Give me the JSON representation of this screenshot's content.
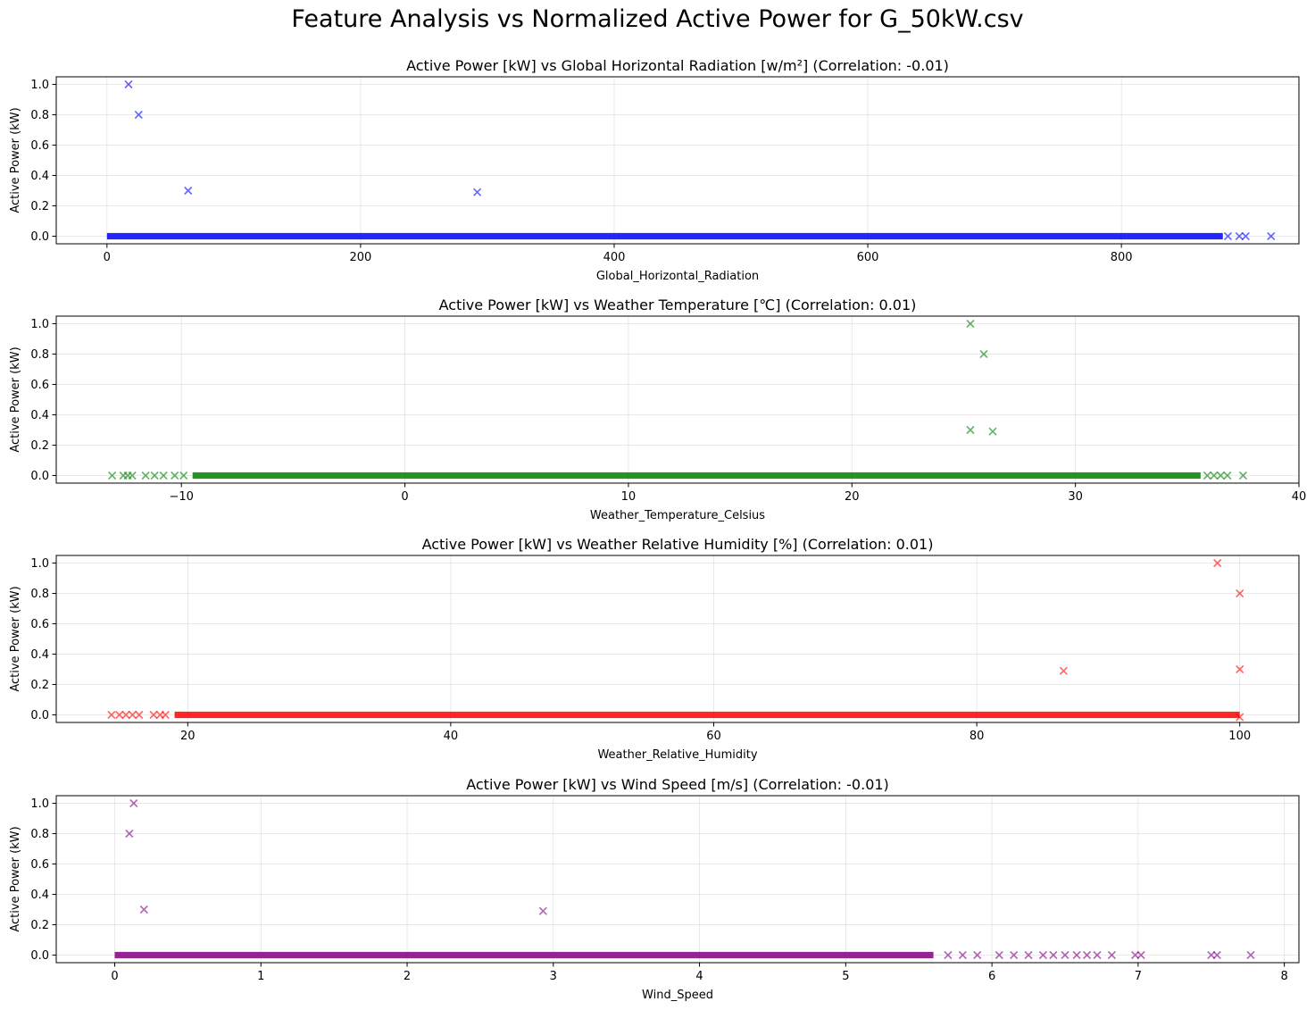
{
  "figure": {
    "title": "Feature Analysis vs Normalized Active Power for G_50kW.csv"
  },
  "chart_data": [
    {
      "type": "scatter",
      "title": "Active Power [kW] vs Global Horizontal Radiation [w/m²] (Correlation: -0.01)",
      "xlabel": "Global_Horizontal_Radiation",
      "ylabel": "Active Power (kW)",
      "xlim": [
        -40,
        940
      ],
      "ylim": [
        -0.05,
        1.05
      ],
      "xticks": [
        0,
        200,
        400,
        600,
        800
      ],
      "yticks": [
        0.0,
        0.2,
        0.4,
        0.6,
        0.8,
        1.0
      ],
      "ytick_labels": [
        "0.0",
        "0.2",
        "0.4",
        "0.6",
        "0.8",
        "1.0"
      ],
      "grid": true,
      "marker": "x",
      "color": "#0000ff",
      "baseline": {
        "y": 0.0,
        "x_range": [
          0,
          918
        ],
        "dense_until": 880
      },
      "points": [
        {
          "x": 17,
          "y": 1.0
        },
        {
          "x": 25,
          "y": 0.8
        },
        {
          "x": 64,
          "y": 0.3
        },
        {
          "x": 292,
          "y": 0.29
        },
        {
          "x": 884,
          "y": 0.0
        },
        {
          "x": 893,
          "y": 0.0
        },
        {
          "x": 898,
          "y": 0.0
        },
        {
          "x": 918,
          "y": 0.0
        }
      ]
    },
    {
      "type": "scatter",
      "title": "Active Power [kW] vs Weather Temperature [℃] (Correlation: 0.01)",
      "xlabel": "Weather_Temperature_Celsius",
      "ylabel": "Active Power (kW)",
      "xlim": [
        -15.6,
        40.0
      ],
      "ylim": [
        -0.05,
        1.05
      ],
      "xticks": [
        -10,
        0,
        10,
        20,
        30,
        40
      ],
      "yticks": [
        0.0,
        0.2,
        0.4,
        0.6,
        0.8,
        1.0
      ],
      "ytick_labels": [
        "0.0",
        "0.2",
        "0.4",
        "0.6",
        "0.8",
        "1.0"
      ],
      "grid": true,
      "marker": "x",
      "color": "#008000",
      "baseline": {
        "y": 0.0,
        "x_range": [
          -13.1,
          37.5
        ],
        "dense_until": 35.6,
        "dense_from": -9.5
      },
      "points": [
        {
          "x": 25.3,
          "y": 1.0
        },
        {
          "x": 25.9,
          "y": 0.8
        },
        {
          "x": 25.3,
          "y": 0.3
        },
        {
          "x": 26.3,
          "y": 0.29
        },
        {
          "x": -13.1,
          "y": 0.0
        },
        {
          "x": -12.6,
          "y": 0.0
        },
        {
          "x": -12.4,
          "y": 0.0
        },
        {
          "x": -12.2,
          "y": 0.0
        },
        {
          "x": -11.6,
          "y": 0.0
        },
        {
          "x": -11.2,
          "y": 0.0
        },
        {
          "x": -10.8,
          "y": 0.0
        },
        {
          "x": -10.3,
          "y": 0.0
        },
        {
          "x": -9.9,
          "y": 0.0
        },
        {
          "x": 35.9,
          "y": 0.0
        },
        {
          "x": 36.2,
          "y": 0.0
        },
        {
          "x": 36.5,
          "y": 0.0
        },
        {
          "x": 36.8,
          "y": 0.0
        },
        {
          "x": 37.5,
          "y": 0.0
        }
      ]
    },
    {
      "type": "scatter",
      "title": "Active Power [kW] vs Weather Relative Humidity [%] (Correlation: 0.01)",
      "xlabel": "Weather_Relative_Humidity",
      "ylabel": "Active Power (kW)",
      "xlim": [
        10.0,
        104.5
      ],
      "ylim": [
        -0.05,
        1.05
      ],
      "xticks": [
        20,
        40,
        60,
        80,
        100
      ],
      "yticks": [
        0.0,
        0.2,
        0.4,
        0.6,
        0.8,
        1.0
      ],
      "ytick_labels": [
        "0.0",
        "0.2",
        "0.4",
        "0.6",
        "0.8",
        "1.0"
      ],
      "grid": true,
      "marker": "x",
      "color": "#ff0000",
      "baseline": {
        "y": 0.0,
        "x_range": [
          14.2,
          100.0
        ],
        "dense_from": 19.0
      },
      "points": [
        {
          "x": 98.3,
          "y": 1.0
        },
        {
          "x": 100.0,
          "y": 0.8
        },
        {
          "x": 100.0,
          "y": 0.3
        },
        {
          "x": 86.6,
          "y": 0.29
        },
        {
          "x": 14.2,
          "y": 0.0
        },
        {
          "x": 14.8,
          "y": 0.0
        },
        {
          "x": 15.3,
          "y": 0.0
        },
        {
          "x": 15.8,
          "y": 0.0
        },
        {
          "x": 16.3,
          "y": 0.0
        },
        {
          "x": 17.4,
          "y": 0.0
        },
        {
          "x": 17.9,
          "y": 0.0
        },
        {
          "x": 18.3,
          "y": 0.0
        },
        {
          "x": 100.0,
          "y": -0.015
        }
      ]
    },
    {
      "type": "scatter",
      "title": "Active Power [kW] vs Wind Speed [m/s] (Correlation: -0.01)",
      "xlabel": "Wind_Speed",
      "ylabel": "Active Power (kW)",
      "xlim": [
        -0.4,
        8.1
      ],
      "ylim": [
        -0.05,
        1.05
      ],
      "xticks": [
        0,
        1,
        2,
        3,
        4,
        5,
        6,
        7,
        8
      ],
      "yticks": [
        0.0,
        0.2,
        0.4,
        0.6,
        0.8,
        1.0
      ],
      "ytick_labels": [
        "0.0",
        "0.2",
        "0.4",
        "0.6",
        "0.8",
        "1.0"
      ],
      "grid": true,
      "marker": "x",
      "color": "#800080",
      "baseline": {
        "y": 0.0,
        "x_range": [
          0,
          7.77
        ],
        "dense_until": 5.6
      },
      "points": [
        {
          "x": 0.13,
          "y": 1.0
        },
        {
          "x": 0.1,
          "y": 0.8
        },
        {
          "x": 0.2,
          "y": 0.3
        },
        {
          "x": 2.93,
          "y": 0.29
        },
        {
          "x": 5.7,
          "y": 0.0
        },
        {
          "x": 5.8,
          "y": 0.0
        },
        {
          "x": 5.9,
          "y": 0.0
        },
        {
          "x": 6.05,
          "y": 0.0
        },
        {
          "x": 6.15,
          "y": 0.0
        },
        {
          "x": 6.25,
          "y": 0.0
        },
        {
          "x": 6.35,
          "y": 0.0
        },
        {
          "x": 6.42,
          "y": 0.0
        },
        {
          "x": 6.5,
          "y": 0.0
        },
        {
          "x": 6.58,
          "y": 0.0
        },
        {
          "x": 6.65,
          "y": 0.0
        },
        {
          "x": 6.72,
          "y": 0.0
        },
        {
          "x": 6.82,
          "y": 0.0
        },
        {
          "x": 6.98,
          "y": 0.0
        },
        {
          "x": 7.02,
          "y": 0.0
        },
        {
          "x": 7.5,
          "y": 0.0
        },
        {
          "x": 7.54,
          "y": 0.0
        },
        {
          "x": 7.77,
          "y": 0.0
        }
      ]
    }
  ]
}
